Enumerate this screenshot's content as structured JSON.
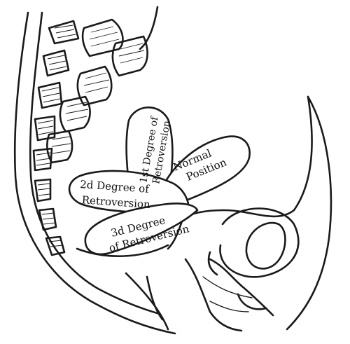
{
  "labels": {
    "normal_line1": "Normal",
    "normal_line2": "Position",
    "first_line1": "1st Degree of",
    "first_line2": "Retroversion",
    "second_line1": "2d Degree of",
    "second_line2": "Retroversion",
    "third_line1": "3d Degree",
    "third_line2": "of Retroversion"
  },
  "colors": {
    "ink": "#1a1a1a",
    "paper": "#ffffff"
  }
}
